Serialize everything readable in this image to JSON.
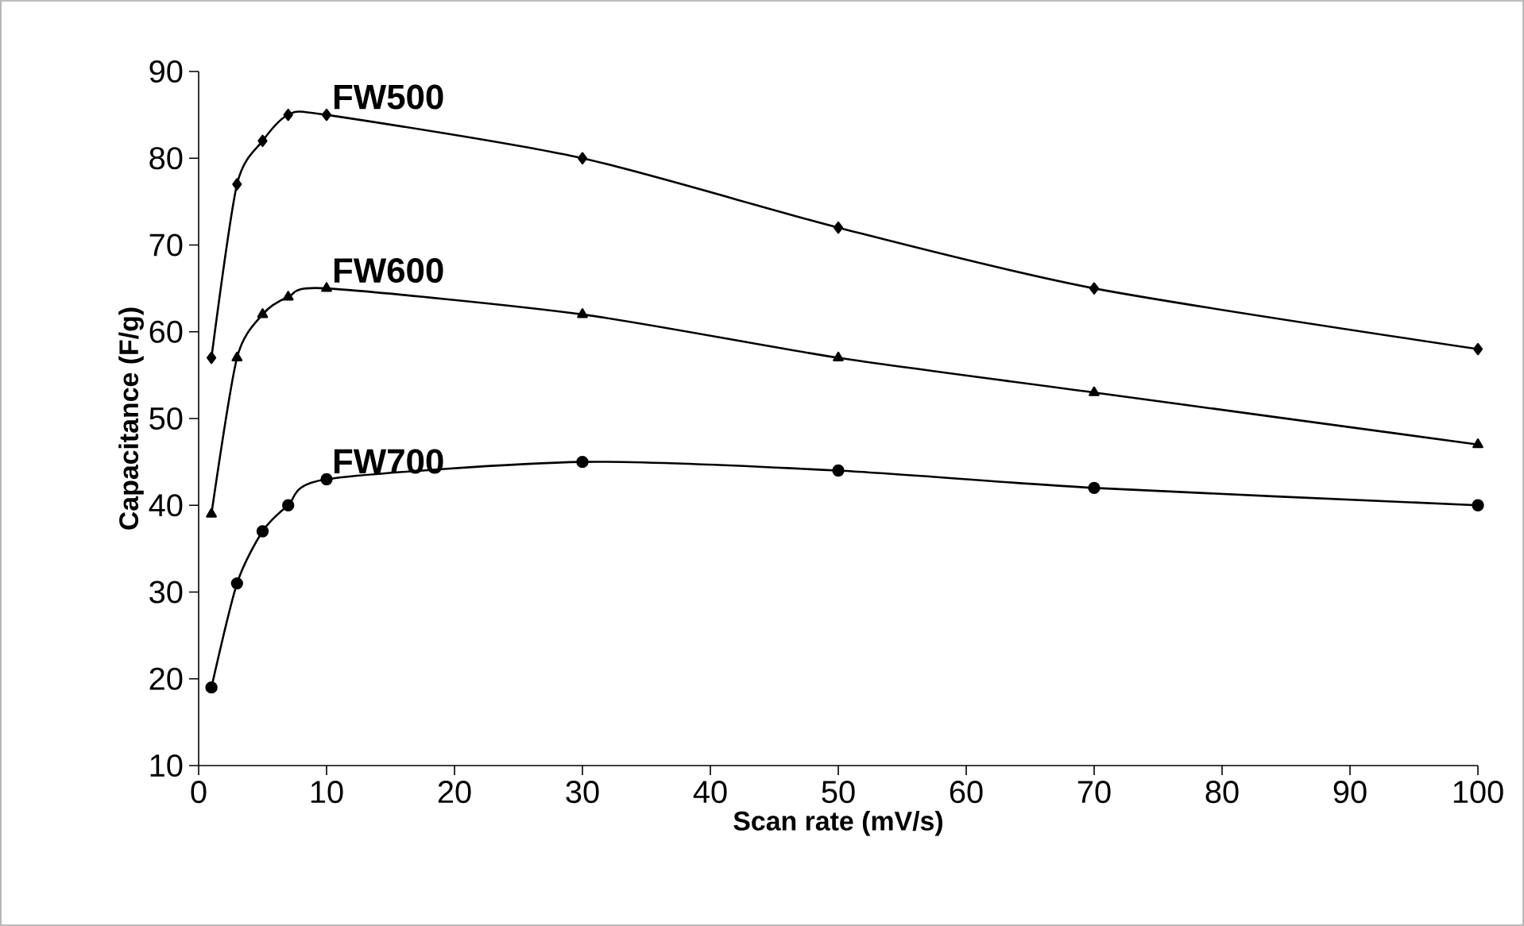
{
  "chart_data": {
    "type": "line",
    "xlabel": "Scan rate (mV/s)",
    "ylabel": "Capacitance (F/g)",
    "x": [
      1,
      3,
      5,
      7,
      10,
      30,
      50,
      70,
      100
    ],
    "series": [
      {
        "name": "FW500",
        "color": "#000000",
        "marker": "diamond",
        "values": [
          57,
          77,
          82,
          85,
          85,
          80,
          72,
          65,
          58
        ]
      },
      {
        "name": "FW600",
        "color": "#000000",
        "marker": "triangle",
        "values": [
          39,
          57,
          62,
          64,
          65,
          62,
          57,
          53,
          47
        ]
      },
      {
        "name": "FW700",
        "color": "#000000",
        "marker": "circle",
        "values": [
          19,
          31,
          37,
          40,
          43,
          45,
          44,
          42,
          40
        ]
      }
    ],
    "xlim": [
      0,
      100
    ],
    "xticks": [
      0,
      10,
      20,
      30,
      40,
      50,
      60,
      70,
      80,
      90,
      100
    ],
    "ylim": [
      10,
      90
    ],
    "yticks": [
      10,
      20,
      30,
      40,
      50,
      60,
      70,
      80,
      90
    ],
    "grid": false,
    "legend": false,
    "line_style": "solid"
  }
}
